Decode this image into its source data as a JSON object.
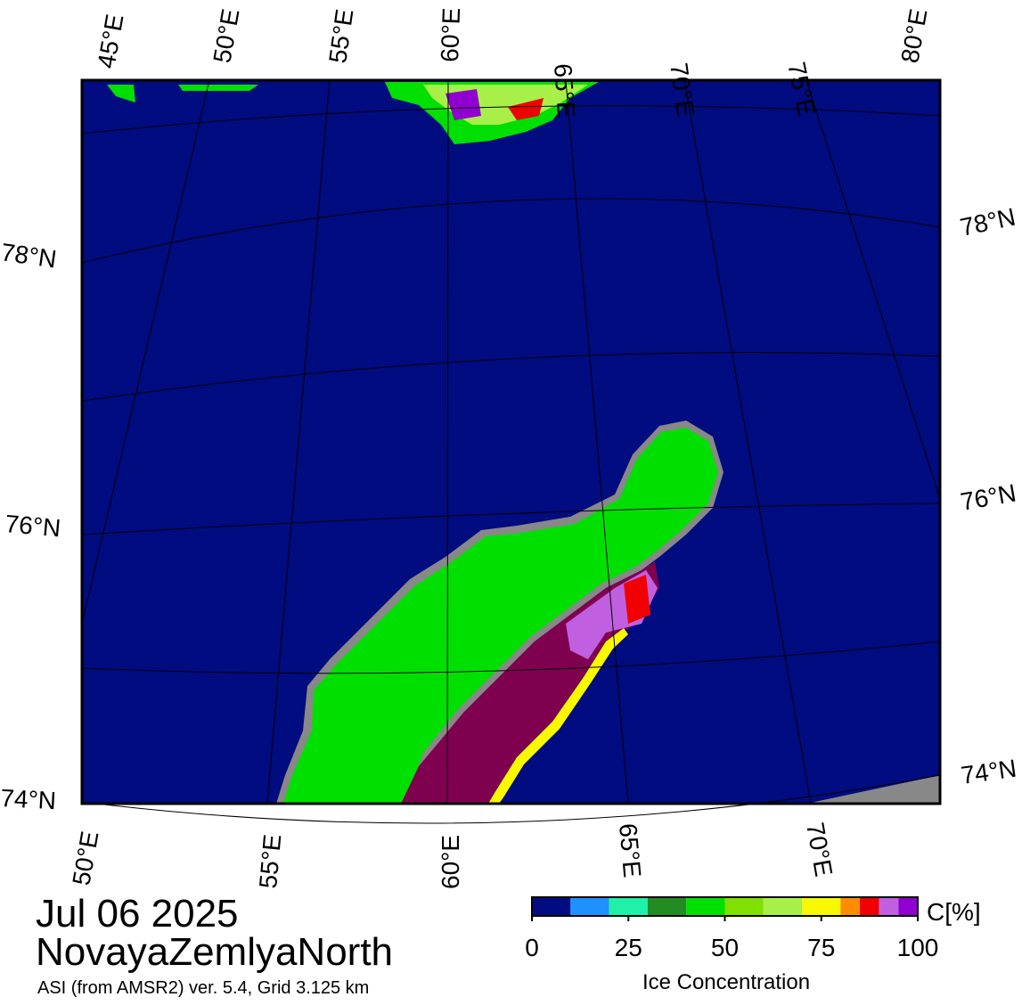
{
  "header": {
    "date": "Jul 06 2025",
    "region": "NovayaZemlyaNorth",
    "source": "ASI (from AMSR2) ver. 5.4,  Grid 3.125 km"
  },
  "map": {
    "top_lon_labels": [
      "45°E",
      "50°E",
      "55°E",
      "60°E",
      "65°E",
      "70°E",
      "75°E",
      "80°E"
    ],
    "left_lat_labels": [
      "78°N",
      "76°N",
      "74°N"
    ],
    "right_lat_labels": [
      "78°N",
      "76°N",
      "74°N"
    ],
    "bottom_lon_labels": [
      "50°E",
      "55°E",
      "60°E",
      "65°E",
      "70°E"
    ]
  },
  "colorbar": {
    "unit": "C[%]",
    "label": "Ice Concentration",
    "lim": [
      0,
      100
    ],
    "ticks": [
      0,
      25,
      50,
      75,
      100
    ],
    "bounds": [
      0,
      10,
      20,
      30,
      40,
      50,
      60,
      70,
      80,
      85,
      90,
      95,
      100
    ],
    "colors": [
      "#000c80",
      "#1e90ff",
      "#20f0a8",
      "#228b22",
      "#00e000",
      "#80e000",
      "#a8f048",
      "#f8f800",
      "#ff8c00",
      "#f00000",
      "#c060e0",
      "#9000d0"
    ]
  }
}
